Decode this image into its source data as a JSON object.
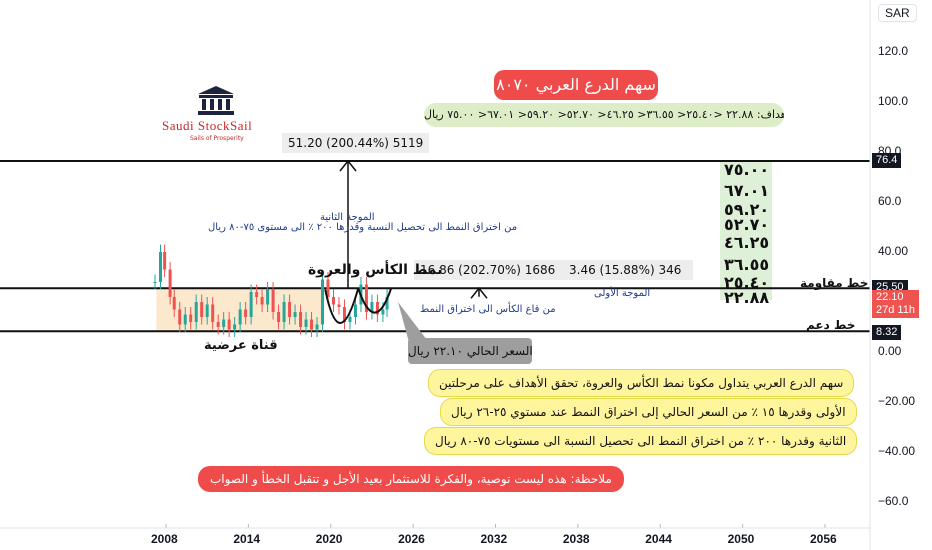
{
  "currency": "SAR",
  "logo": {
    "name": "Saudi StockSail",
    "tagline": "Sails of Prosperity"
  },
  "title_badge": "سهم الدرع العربي ٨٠٧٠",
  "targets_banner": "أهداف: ٢٢.٨٨ <٢٥.٤٠< ٣٦.٥٥< ٤٦.٢٥< ٥٢.٧٠< ٥٩.٢٠< ٦٧.٠١< ٧٥.٠٠ ريال",
  "measure_top": "51.20 (200.44%) 5119",
  "measure_mid": "16.86 (202.70%) 1686",
  "measure_small": "3.46 (15.88%) 346",
  "wave2_title": "الموجة الثانية",
  "wave2_text": "من اختراق النمط الى تحصيل النسبة وقدرها ٢٠٠ ٪ الى مستوى ٧٥-٨٠ ريال",
  "wave1_title": "الموجة الأولى",
  "wave1_text": "من قاع الكأس الى اختراق النمط",
  "pattern_label": "نمط الكأس والعروة",
  "channel_label": "قناة عرضية",
  "resistance_label": "خط مقاومة",
  "support_label": "خط دعم",
  "current_price_box": "السعر الحالي ٢٢.١٠ ريال",
  "note1": "سهم الدرع العربي يتداول مكونا نمط الكأس والعروة، تحقق الأهداف على مرحلتين",
  "note2": "الأولى وقدرها ١٥ ٪ من السعر الحالي إلى اختراق النمط عند مستوي ٢٥-٢٦ ريال",
  "note3": "الثانية وقدرها ٢٠٠ ٪ من اختراق النمط الى تحصيل النسبة الى مستويات ٧٥-٨٠ ريال",
  "disclaimer": "ملاحظة: هذه ليست توصية، والفكرة للاستثمار بعيد الأجل و تتقبل  الخطأ و الصواب",
  "target_levels": [
    "٧٥.٠٠",
    "٦٧.٠١",
    "٥٩.٢٠",
    "٥٢.٧٠",
    "٤٦.٢٥",
    "٣٦.٥٥",
    "٢٥.٤٠",
    "٢٢.٨٨"
  ],
  "price_tags": {
    "top_line": "76.4",
    "resistance": "25.50",
    "current_price": "22.10",
    "countdown": "27d 11h",
    "support": "8.32"
  },
  "colors": {
    "candle_up": "#26a69a",
    "candle_down": "#ef5350",
    "channel_fill": "#fce4c4",
    "targets_bg": "#dff0d8",
    "title_badge_bg": "#ef4b4b",
    "current_tag": "#ef5350"
  },
  "chart_data": {
    "type": "line",
    "x_ticks": [
      "2008",
      "2014",
      "2020",
      "2026",
      "2032",
      "2038",
      "2044",
      "2050",
      "2056"
    ],
    "y_ticks": [
      "120.0",
      "100.0",
      "80.0",
      "60.0",
      "40.00",
      "20.00",
      "0.00",
      "−20.00",
      "−40.00",
      "−60.0"
    ],
    "ylim": [
      -66,
      130
    ],
    "xlim": [
      2003.5,
      2059.5
    ],
    "horizontal_lines": [
      76.4,
      25.5,
      8.32
    ],
    "series": [
      {
        "values": [
          [
            2007.2,
            28
          ],
          [
            2007.6,
            40
          ],
          [
            2007.9,
            33
          ],
          [
            2008.3,
            22
          ],
          [
            2008.6,
            17
          ],
          [
            2009.0,
            11
          ],
          [
            2009.4,
            15
          ],
          [
            2009.8,
            12
          ],
          [
            2010.2,
            20
          ],
          [
            2010.6,
            14
          ],
          [
            2011.0,
            19
          ],
          [
            2011.4,
            12
          ],
          [
            2011.8,
            10
          ],
          [
            2012.2,
            13
          ],
          [
            2012.6,
            9
          ],
          [
            2013.0,
            11
          ],
          [
            2013.4,
            17
          ],
          [
            2013.8,
            14
          ],
          [
            2014.2,
            24
          ],
          [
            2014.6,
            22
          ],
          [
            2015.0,
            19
          ],
          [
            2015.4,
            25
          ],
          [
            2015.8,
            16
          ],
          [
            2016.2,
            12
          ],
          [
            2016.6,
            20
          ],
          [
            2017.0,
            14
          ],
          [
            2017.4,
            16
          ],
          [
            2017.8,
            10
          ],
          [
            2018.2,
            13
          ],
          [
            2018.6,
            9
          ],
          [
            2019.0,
            11
          ],
          [
            2019.4,
            29
          ],
          [
            2019.8,
            22
          ],
          [
            2020.2,
            19
          ],
          [
            2020.6,
            18
          ],
          [
            2021.0,
            12
          ],
          [
            2021.4,
            14
          ],
          [
            2021.8,
            19
          ],
          [
            2022.2,
            27
          ],
          [
            2022.6,
            16
          ],
          [
            2023.0,
            20
          ],
          [
            2023.4,
            15
          ],
          [
            2023.8,
            17
          ],
          [
            2024.1,
            22.1
          ]
        ]
      }
    ]
  }
}
